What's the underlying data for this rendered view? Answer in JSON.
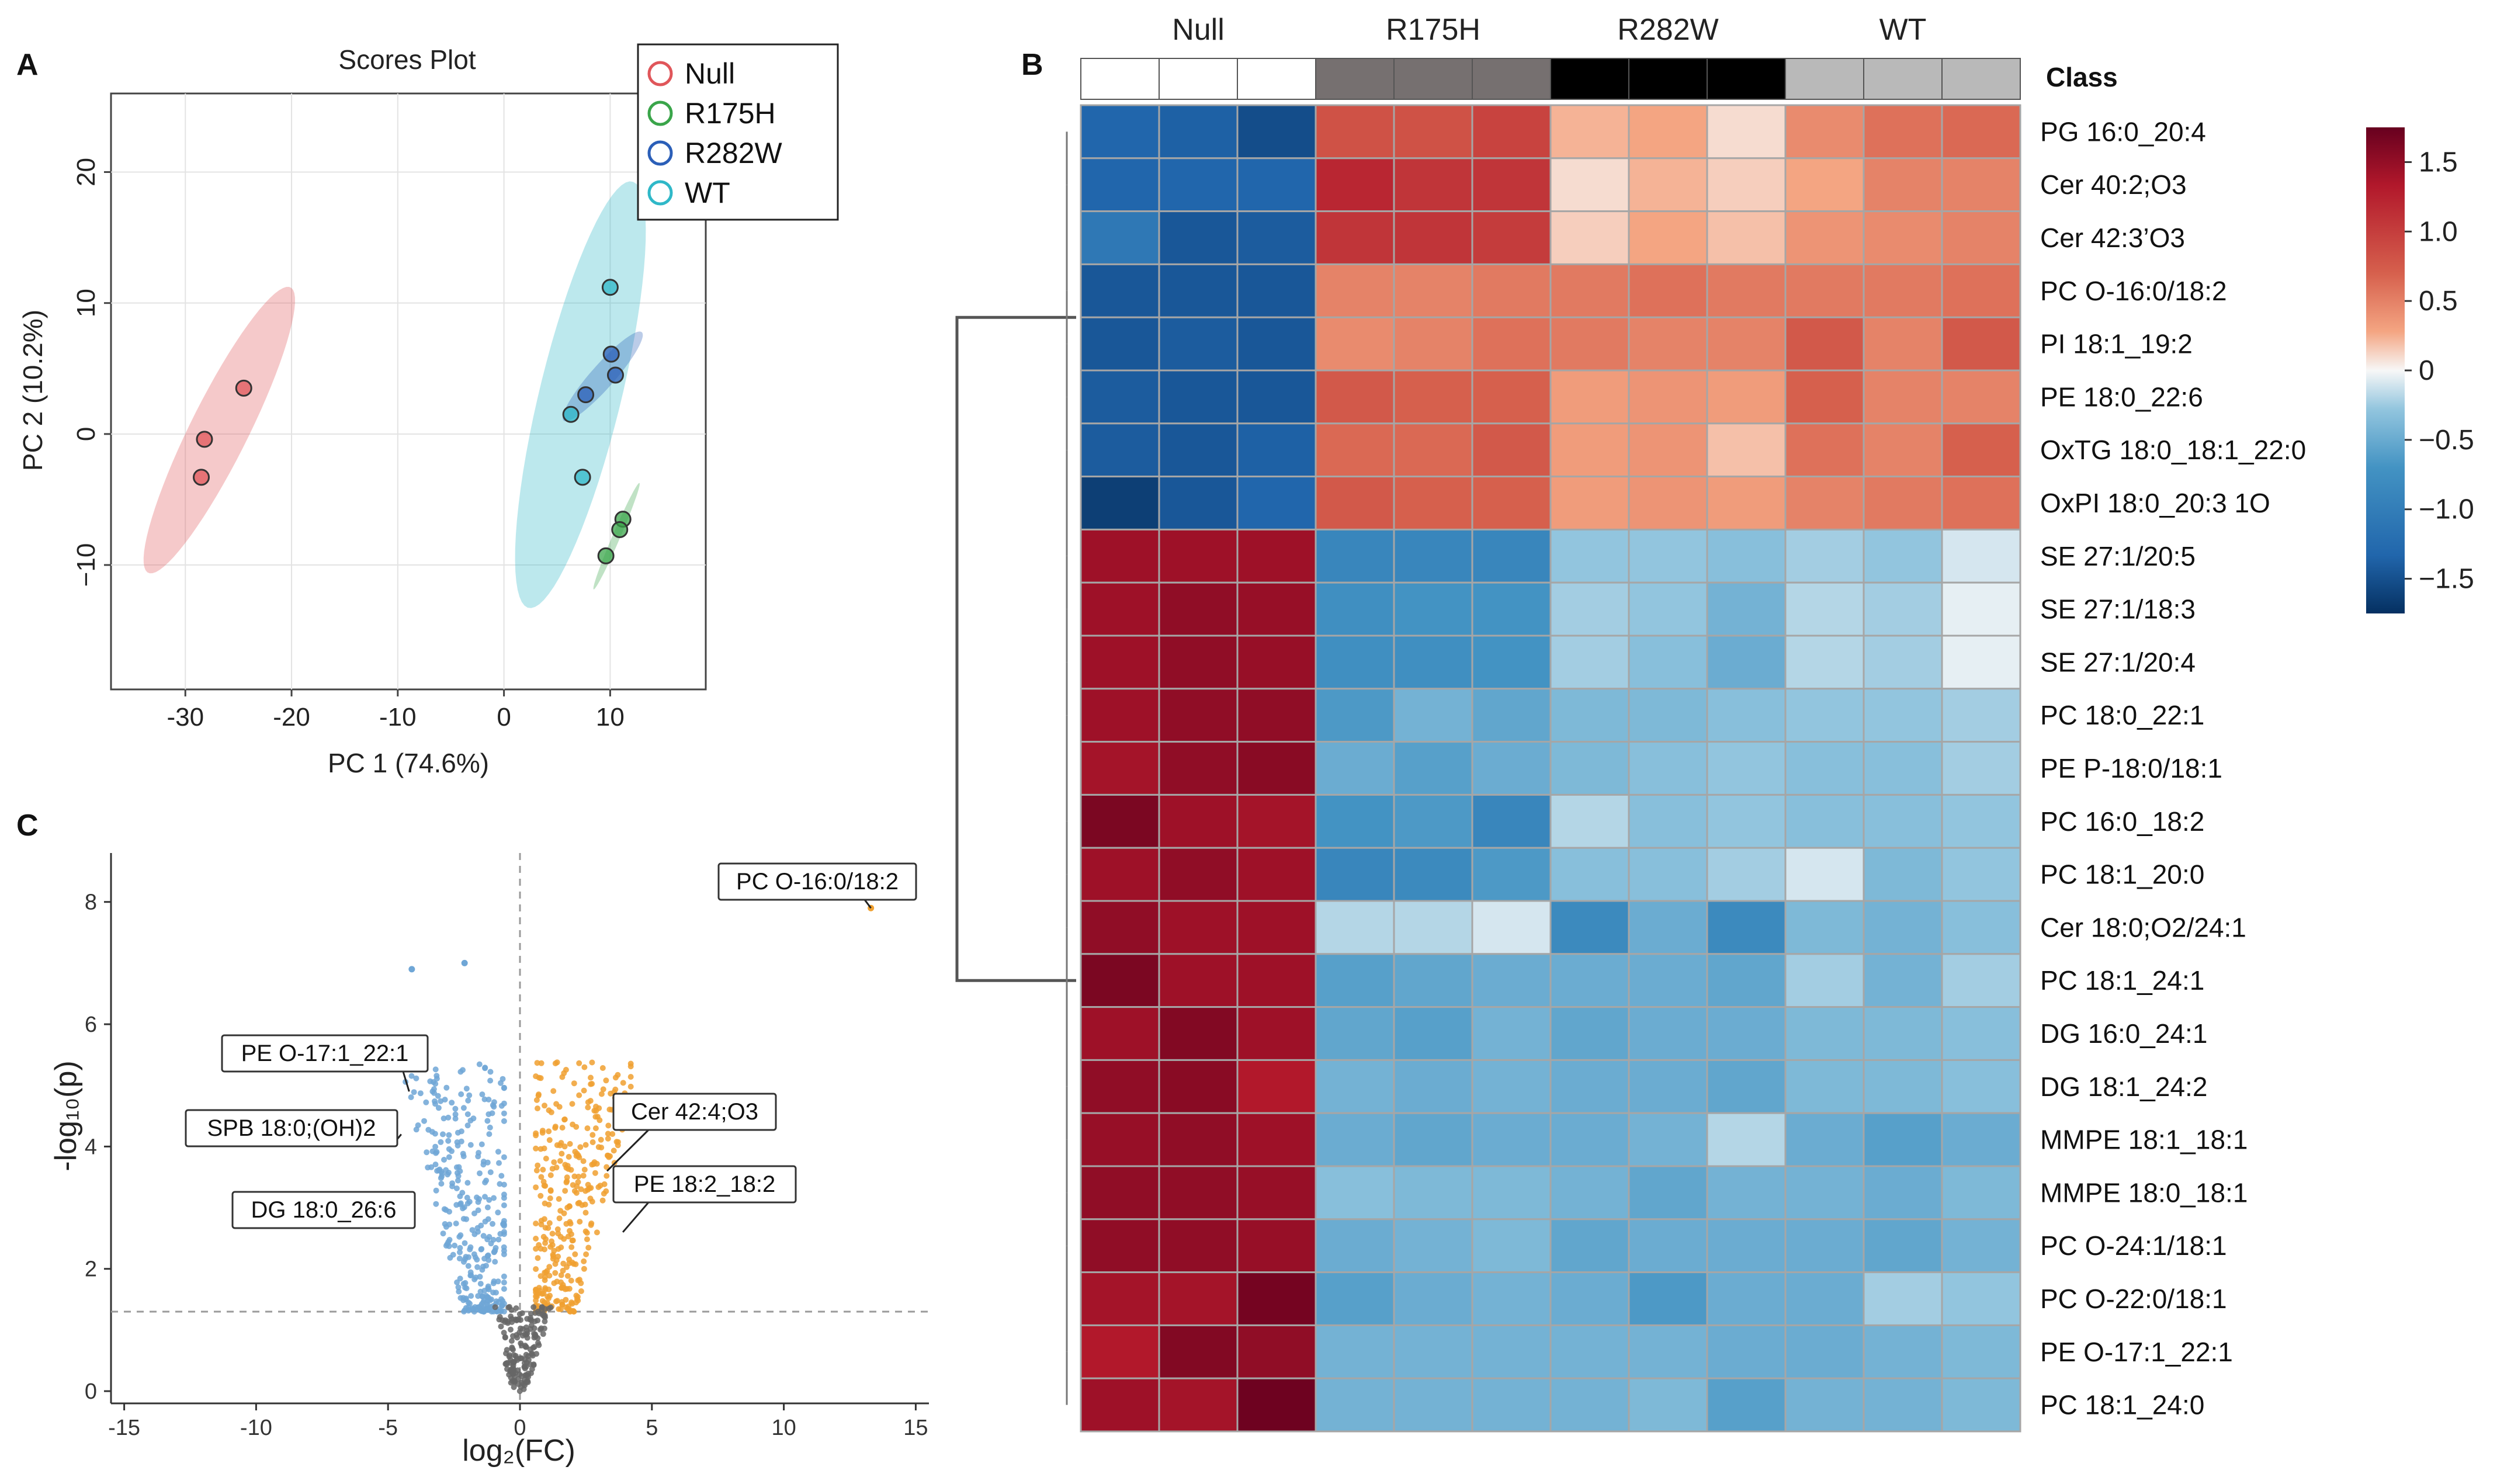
{
  "panels": {
    "a": {
      "letter": "A"
    },
    "b": {
      "letter": "B"
    },
    "c": {
      "letter": "C"
    }
  },
  "colors": {
    "null": "#e0565a",
    "r175h": "#3aa54a",
    "r282w": "#2b5fb8",
    "wt": "#2fb8c8",
    "volcano_up": "#f0a030",
    "volcano_down": "#6fa6d6",
    "volcano_ns": "#666666",
    "heat_low": "#053061",
    "heat_mid": "#f7f7f7",
    "heat_high": "#67001f"
  },
  "chart_data": [
    {
      "type": "scatter",
      "title": "Scores Plot",
      "xlabel": "PC 1 (74.6%)",
      "ylabel": "PC 2 (10.2%)",
      "xlim": [
        -37,
        19
      ],
      "ylim": [
        -19.5,
        26
      ],
      "xticks": [
        -30,
        -20,
        -10,
        0,
        10
      ],
      "xtick_labels": [
        "-30",
        "-20",
        "-10",
        "0",
        "10"
      ],
      "yticks": [
        -10,
        0,
        10,
        20
      ],
      "ytick_labels": [
        "−10",
        "0",
        "10",
        "20"
      ],
      "legend": {
        "position": "top-right"
      },
      "series": [
        {
          "name": "Null",
          "color_key": "null",
          "x": [
            -24.5,
            -28.2,
            -28.5
          ],
          "y": [
            3.5,
            -0.4,
            -3.3
          ]
        },
        {
          "name": "R175H",
          "color_key": "r175h",
          "x": [
            11.2,
            10.9,
            9.6
          ],
          "y": [
            -6.5,
            -7.3,
            -9.3
          ]
        },
        {
          "name": "R282W",
          "color_key": "r282w",
          "x": [
            10.1,
            10.5,
            7.7
          ],
          "y": [
            6.1,
            4.5,
            3.0
          ]
        },
        {
          "name": "WT",
          "color_key": "wt",
          "x": [
            10.0,
            6.3,
            7.4
          ],
          "y": [
            11.2,
            1.5,
            -3.3
          ]
        }
      ],
      "ellipses": [
        {
          "group": "Null",
          "color_key": "null",
          "center": [
            -26.8,
            0.3
          ],
          "a": 12.8,
          "b": 2.6,
          "angle_deg": 58
        },
        {
          "group": "WT",
          "color_key": "wt",
          "center": [
            7.2,
            3.0
          ],
          "a": 17.0,
          "b": 3.8,
          "angle_deg": 73
        },
        {
          "group": "R282W",
          "color_key": "r282w",
          "center": [
            9.3,
            4.4
          ],
          "a": 5.0,
          "b": 1.0,
          "angle_deg": 42
        },
        {
          "group": "R175H",
          "color_key": "r175h",
          "center": [
            10.6,
            -7.8
          ],
          "a": 4.6,
          "b": 0.35,
          "angle_deg": 62
        }
      ]
    },
    {
      "type": "heatmap",
      "groups": [
        "Null",
        "R175H",
        "R282W",
        "WT"
      ],
      "class_label": "Class",
      "class_colors": [
        "#ffffff",
        "#ffffff",
        "#ffffff",
        "#767070",
        "#767070",
        "#767070",
        "#000000",
        "#000000",
        "#000000",
        "#b9b9b9",
        "#b9b9b9",
        "#b9b9b9"
      ],
      "rows": [
        "PG 16:0_20:4",
        "Cer 40:2;O3",
        "Cer 42:3’O3",
        "PC O-16:0/18:2",
        "PI 18:1_19:2",
        "PE 18:0_22:6",
        "OxTG 18:0_18:1_22:0",
        "OxPI 18:0_20:3 1O",
        "SE 27:1/20:5",
        "SE 27:1/18:3",
        "SE 27:1/20:4",
        "PC 18:0_22:1",
        "PE P-18:0/18:1",
        "PC 16:0_18:2",
        "PC 18:1_20:0",
        "Cer 18:0;O2/24:1",
        "PC 18:1_24:1",
        "DG 16:0_24:1",
        "DG 18:1_24:2",
        "MMPE 18:1_18:1",
        "MMPE 18:0_18:1",
        "PC O-24:1/18:1",
        "PC O-22:0/18:1",
        "PE O-17:1_22:1",
        "PC 18:1_24:0"
      ],
      "values": [
        [
          -1.2,
          -1.25,
          -1.45,
          0.8,
          0.8,
          0.9,
          0.25,
          0.3,
          0.1,
          0.45,
          0.6,
          0.65
        ],
        [
          -1.2,
          -1.2,
          -1.2,
          1.1,
          1.0,
          1.0,
          0.1,
          0.25,
          0.15,
          0.3,
          0.5,
          0.5
        ],
        [
          -1.0,
          -1.35,
          -1.3,
          1.0,
          1.0,
          0.95,
          0.15,
          0.3,
          0.2,
          0.4,
          0.45,
          0.5
        ],
        [
          -1.35,
          -1.35,
          -1.35,
          0.5,
          0.5,
          0.55,
          0.55,
          0.6,
          0.55,
          0.55,
          0.55,
          0.6
        ],
        [
          -1.35,
          -1.3,
          -1.35,
          0.45,
          0.5,
          0.6,
          0.55,
          0.5,
          0.5,
          0.75,
          0.5,
          0.75
        ],
        [
          -1.3,
          -1.35,
          -1.35,
          0.75,
          0.7,
          0.7,
          0.35,
          0.4,
          0.35,
          0.7,
          0.5,
          0.5
        ],
        [
          -1.3,
          -1.35,
          -1.25,
          0.65,
          0.65,
          0.75,
          0.35,
          0.4,
          0.2,
          0.6,
          0.5,
          0.7
        ],
        [
          -1.6,
          -1.35,
          -1.2,
          0.75,
          0.7,
          0.7,
          0.35,
          0.4,
          0.35,
          0.5,
          0.55,
          0.6
        ],
        [
          1.35,
          1.35,
          1.35,
          -0.85,
          -0.85,
          -0.85,
          -0.3,
          -0.3,
          -0.35,
          -0.25,
          -0.3,
          -0.1
        ],
        [
          1.35,
          1.45,
          1.4,
          -0.75,
          -0.7,
          -0.7,
          -0.25,
          -0.3,
          -0.45,
          -0.2,
          -0.25,
          -0.05
        ],
        [
          1.35,
          1.45,
          1.4,
          -0.75,
          -0.75,
          -0.7,
          -0.25,
          -0.35,
          -0.5,
          -0.2,
          -0.25,
          -0.05
        ],
        [
          1.35,
          1.45,
          1.45,
          -0.65,
          -0.45,
          -0.55,
          -0.4,
          -0.4,
          -0.35,
          -0.3,
          -0.3,
          -0.25
        ],
        [
          1.3,
          1.45,
          1.5,
          -0.5,
          -0.6,
          -0.5,
          -0.4,
          -0.35,
          -0.3,
          -0.35,
          -0.35,
          -0.25
        ],
        [
          1.6,
          1.35,
          1.3,
          -0.7,
          -0.65,
          -0.85,
          -0.2,
          -0.35,
          -0.3,
          -0.35,
          -0.35,
          -0.3
        ],
        [
          1.35,
          1.45,
          1.35,
          -0.85,
          -0.8,
          -0.65,
          -0.35,
          -0.35,
          -0.25,
          -0.1,
          -0.4,
          -0.3
        ],
        [
          1.45,
          1.35,
          1.35,
          -0.2,
          -0.2,
          -0.1,
          -0.8,
          -0.5,
          -0.8,
          -0.4,
          -0.45,
          -0.35
        ],
        [
          1.6,
          1.35,
          1.35,
          -0.6,
          -0.55,
          -0.5,
          -0.5,
          -0.5,
          -0.55,
          -0.25,
          -0.45,
          -0.25
        ],
        [
          1.35,
          1.55,
          1.35,
          -0.55,
          -0.6,
          -0.45,
          -0.55,
          -0.5,
          -0.5,
          -0.4,
          -0.4,
          -0.35
        ],
        [
          1.45,
          1.5,
          1.2,
          -0.45,
          -0.5,
          -0.45,
          -0.5,
          -0.5,
          -0.55,
          -0.4,
          -0.4,
          -0.35
        ],
        [
          1.4,
          1.45,
          1.35,
          -0.5,
          -0.55,
          -0.5,
          -0.5,
          -0.45,
          -0.2,
          -0.5,
          -0.6,
          -0.5
        ],
        [
          1.45,
          1.45,
          1.4,
          -0.35,
          -0.4,
          -0.4,
          -0.45,
          -0.55,
          -0.45,
          -0.45,
          -0.5,
          -0.4
        ],
        [
          1.45,
          1.45,
          1.4,
          -0.5,
          -0.45,
          -0.4,
          -0.55,
          -0.5,
          -0.5,
          -0.5,
          -0.55,
          -0.45
        ],
        [
          1.3,
          1.3,
          1.65,
          -0.6,
          -0.5,
          -0.45,
          -0.5,
          -0.65,
          -0.5,
          -0.5,
          -0.25,
          -0.3
        ],
        [
          1.2,
          1.55,
          1.45,
          -0.45,
          -0.45,
          -0.45,
          -0.45,
          -0.45,
          -0.5,
          -0.5,
          -0.45,
          -0.4
        ],
        [
          1.35,
          1.3,
          1.7,
          -0.45,
          -0.45,
          -0.45,
          -0.45,
          -0.4,
          -0.6,
          -0.45,
          -0.45,
          -0.4
        ]
      ],
      "dendrogram": {
        "top_cluster_rows": [
          0,
          7
        ],
        "bottom_cluster_rows": [
          8,
          24
        ]
      },
      "colorbar": {
        "range": [
          -1.75,
          1.75
        ],
        "ticks": [
          1.5,
          1.0,
          0.5,
          0,
          -0.5,
          -1.0,
          -1.5
        ],
        "tick_labels": [
          "1.5",
          "1.0",
          "0.5",
          "0",
          "−0.5",
          "−1.0",
          "−1.5"
        ]
      }
    },
    {
      "type": "scatter",
      "subtype": "volcano",
      "xlabel": "log₂(FC)",
      "ylabel": "-log₁₀(p)",
      "xlim": [
        -15.5,
        15.5
      ],
      "ylim": [
        -0.2,
        8.8
      ],
      "xticks": [
        -15,
        -10,
        -5,
        0,
        5,
        10,
        15
      ],
      "xtick_labels": [
        "-15",
        "-10",
        "-5",
        "0",
        "5",
        "10",
        "15"
      ],
      "yticks": [
        0,
        2,
        4,
        6,
        8
      ],
      "ytick_labels": [
        "0",
        "2",
        "4",
        "6",
        "8"
      ],
      "thresholds": {
        "log2fc": 0,
        "neg_log10_p": 1.3
      },
      "labels": [
        {
          "text": "PC O-16:0/18:2",
          "x": 13.3,
          "y": 7.9
        },
        {
          "text": "PE O-17:1_22:1",
          "x": -4.2,
          "y": 4.9
        },
        {
          "text": "SPB 18:0;(OH)2",
          "x": -4.5,
          "y": 4.2
        },
        {
          "text": "DG 18:0_26:6",
          "x": -4.3,
          "y": 2.7
        },
        {
          "text": "Cer 42:4;O3",
          "x": 3.3,
          "y": 3.6
        },
        {
          "text": "PE 18:2_18:2",
          "x": 3.9,
          "y": 2.6
        }
      ],
      "series": [
        {
          "name": "up",
          "color_key": "volcano_up",
          "n_points": 340,
          "x_range": [
            0.6,
            4.2
          ],
          "y_range": [
            1.3,
            5.4
          ]
        },
        {
          "name": "down",
          "color_key": "volcano_down",
          "n_points": 330,
          "x_range": [
            -4.4,
            -0.6
          ],
          "y_range": [
            1.3,
            5.4
          ]
        },
        {
          "name": "ns",
          "color_key": "volcano_ns",
          "n_points": 170,
          "x_range": [
            -1.3,
            1.3
          ],
          "y_range": [
            0.0,
            1.4
          ]
        }
      ],
      "highlight_points": [
        {
          "x": -4.1,
          "y": 6.9
        },
        {
          "x": -2.1,
          "y": 7.0
        },
        {
          "x": 13.3,
          "y": 7.9
        }
      ]
    }
  ]
}
